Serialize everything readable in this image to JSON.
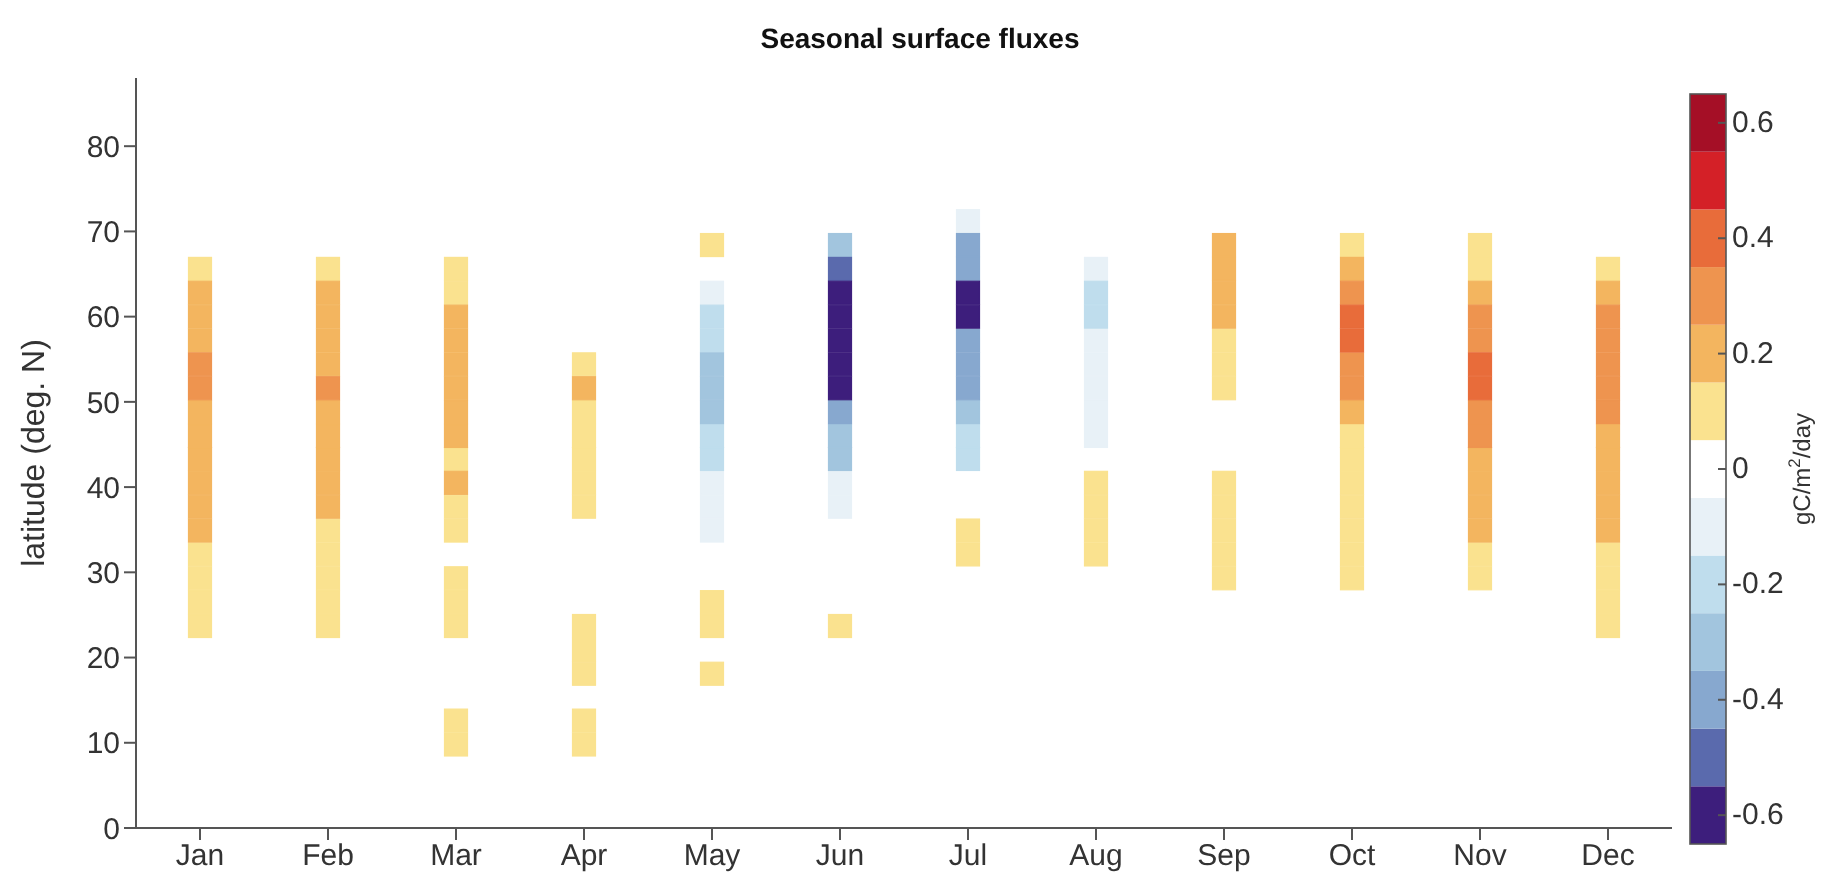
{
  "chart_data": {
    "type": "scatter",
    "title": "Seasonal surface fluxes",
    "ylabel": "latitude (deg. N)",
    "clabel": "gC/m$^{2}$/day",
    "marker": "square",
    "categories": [
      "Jan",
      "Feb",
      "Mar",
      "Apr",
      "May",
      "Jun",
      "Jul",
      "Aug",
      "Sep",
      "Oct",
      "Nov",
      "Dec"
    ],
    "ylim": [
      0,
      88
    ],
    "yticks": [
      0,
      10,
      20,
      30,
      40,
      50,
      60,
      70,
      80
    ],
    "clim": [
      -0.65,
      0.65
    ],
    "cticks": [
      -0.6,
      -0.4,
      -0.2,
      0,
      0.2,
      0.4,
      0.6
    ],
    "series": [
      {
        "color": "#fae28f",
        "x": [
          "Jan",
          "Jan",
          "Jan",
          "Jan",
          "Jan",
          "Feb",
          "Feb",
          "Feb",
          "Feb",
          "Feb",
          "Feb",
          "Mar",
          "Mar",
          "Mar",
          "Mar",
          "Mar",
          "Mar",
          "Mar",
          "Mar",
          "Mar",
          "Mar",
          "Apr",
          "Apr",
          "Apr",
          "Apr",
          "Apr",
          "Apr",
          "Apr",
          "Apr",
          "Apr",
          "Apr",
          "Apr",
          "May",
          "May",
          "May",
          "May",
          "Jun",
          "Jul",
          "Jul",
          "Aug",
          "Aug",
          "Aug",
          "Aug",
          "Sep",
          "Sep",
          "Sep",
          "Sep",
          "Sep",
          "Sep",
          "Sep",
          "Sep",
          "Oct",
          "Oct",
          "Oct",
          "Oct",
          "Oct",
          "Oct",
          "Oct",
          "Oct",
          "Nov",
          "Nov",
          "Nov",
          "Nov",
          "Dec",
          "Dec",
          "Dec",
          "Dec",
          "Dec"
        ],
        "values": [
          23.7,
          26.5,
          29.3,
          32.1,
          65.6,
          23.7,
          26.5,
          29.3,
          32.1,
          34.9,
          65.6,
          9.8,
          12.6,
          23.7,
          26.5,
          29.3,
          34.9,
          37.7,
          43.3,
          62.8,
          65.6,
          9.8,
          12.6,
          18.1,
          20.9,
          23.7,
          37.7,
          40.5,
          43.3,
          46.0,
          48.8,
          54.4,
          18.1,
          23.7,
          26.5,
          68.4,
          23.7,
          32.1,
          34.9,
          32.1,
          34.9,
          37.7,
          40.5,
          29.3,
          32.1,
          34.9,
          37.7,
          40.5,
          51.6,
          54.4,
          57.2,
          29.3,
          32.1,
          34.9,
          37.7,
          40.5,
          43.3,
          46.0,
          68.4,
          29.3,
          32.1,
          65.6,
          68.4,
          23.7,
          26.5,
          29.3,
          32.1,
          65.6
        ],
        "cvalues": [
          0.1,
          0.1,
          0.1,
          0.1,
          0.1,
          0.1,
          0.1,
          0.1,
          0.1,
          0.1,
          0.1,
          0.1,
          0.1,
          0.1,
          0.1,
          0.1,
          0.1,
          0.1,
          0.1,
          0.1,
          0.1,
          0.1,
          0.1,
          0.1,
          0.1,
          0.1,
          0.1,
          0.1,
          0.1,
          0.1,
          0.1,
          0.1,
          0.1,
          0.1,
          0.1,
          0.1,
          0.1,
          0.1,
          0.1,
          0.1,
          0.1,
          0.1,
          0.1,
          0.1,
          0.1,
          0.1,
          0.1,
          0.1,
          0.1,
          0.1,
          0.1,
          0.1,
          0.1,
          0.1,
          0.1,
          0.1,
          0.1,
          0.1,
          0.1,
          0.1,
          0.1,
          0.1,
          0.1,
          0.1,
          0.1,
          0.1,
          0.1,
          0.1
        ]
      },
      {
        "color": "#f3b55f",
        "x": [
          "Jan",
          "Jan",
          "Jan",
          "Jan",
          "Jan",
          "Jan",
          "Jan",
          "Jan",
          "Jan",
          "Feb",
          "Feb",
          "Feb",
          "Feb",
          "Feb",
          "Feb",
          "Feb",
          "Feb",
          "Feb",
          "Mar",
          "Mar",
          "Mar",
          "Mar",
          "Mar",
          "Mar",
          "Mar",
          "Apr",
          "Sep",
          "Sep",
          "Sep",
          "Sep",
          "Oct",
          "Oct",
          "Nov",
          "Nov",
          "Nov",
          "Nov",
          "Nov",
          "Dec",
          "Dec",
          "Dec",
          "Dec",
          "Dec",
          "Dec"
        ],
        "values": [
          34.9,
          37.7,
          40.5,
          43.3,
          46.0,
          48.8,
          57.2,
          60.0,
          62.8,
          37.7,
          40.5,
          43.3,
          46.0,
          48.8,
          54.4,
          57.2,
          60.0,
          62.8,
          40.5,
          46.0,
          48.8,
          51.6,
          54.4,
          57.2,
          60.0,
          51.6,
          60.0,
          62.8,
          65.6,
          68.4,
          48.8,
          65.6,
          34.9,
          37.7,
          40.5,
          43.3,
          62.8,
          34.9,
          37.7,
          40.5,
          43.3,
          46.0,
          62.8
        ],
        "cvalues": [
          0.2,
          0.2,
          0.2,
          0.2,
          0.2,
          0.2,
          0.2,
          0.2,
          0.2,
          0.2,
          0.2,
          0.2,
          0.2,
          0.2,
          0.2,
          0.2,
          0.2,
          0.2,
          0.2,
          0.2,
          0.2,
          0.2,
          0.2,
          0.2,
          0.2,
          0.2,
          0.2,
          0.2,
          0.2,
          0.2,
          0.2,
          0.2,
          0.2,
          0.2,
          0.2,
          0.2,
          0.2,
          0.2,
          0.2,
          0.2,
          0.2,
          0.2,
          0.2
        ]
      },
      {
        "color": "#ee944f",
        "x": [
          "Jan",
          "Jan",
          "Feb",
          "Oct",
          "Oct",
          "Oct",
          "Nov",
          "Nov",
          "Nov",
          "Nov",
          "Dec",
          "Dec",
          "Dec",
          "Dec",
          "Dec"
        ],
        "values": [
          51.6,
          54.4,
          51.6,
          51.6,
          54.4,
          62.8,
          46.0,
          48.8,
          57.2,
          60.0,
          48.8,
          51.6,
          54.4,
          57.2,
          60.0
        ],
        "cvalues": [
          0.3,
          0.3,
          0.3,
          0.3,
          0.3,
          0.3,
          0.3,
          0.3,
          0.3,
          0.3,
          0.3,
          0.3,
          0.3,
          0.3,
          0.3
        ]
      },
      {
        "color": "#e86c3a",
        "x": [
          "Oct",
          "Oct",
          "Nov",
          "Nov"
        ],
        "values": [
          57.2,
          60.0,
          51.6,
          54.4
        ],
        "cvalues": [
          0.4,
          0.4,
          0.4,
          0.4
        ]
      },
      {
        "color": "#e8f1f7",
        "x": [
          "May",
          "May",
          "May",
          "May",
          "Jun",
          "Jun",
          "Jul",
          "Aug",
          "Aug",
          "Aug",
          "Aug",
          "Aug",
          "Aug"
        ],
        "values": [
          34.9,
          37.7,
          40.5,
          62.8,
          37.7,
          40.5,
          71.2,
          46.0,
          48.8,
          51.6,
          54.4,
          57.2,
          65.6
        ],
        "cvalues": [
          -0.1,
          -0.1,
          -0.1,
          -0.1,
          -0.1,
          -0.1,
          -0.1,
          -0.1,
          -0.1,
          -0.1,
          -0.1,
          -0.1,
          -0.1
        ]
      },
      {
        "color": "#bfdded",
        "x": [
          "May",
          "May",
          "May",
          "May",
          "Jul",
          "Jul",
          "Aug",
          "Aug"
        ],
        "values": [
          43.3,
          46.0,
          57.2,
          60.0,
          43.3,
          46.0,
          60.0,
          62.8
        ],
        "cvalues": [
          -0.2,
          -0.2,
          -0.2,
          -0.2,
          -0.2,
          -0.2,
          -0.2,
          -0.2
        ]
      },
      {
        "color": "#a2c5de",
        "x": [
          "May",
          "May",
          "May",
          "Jun",
          "Jun",
          "Jun",
          "Jul"
        ],
        "values": [
          48.8,
          51.6,
          54.4,
          43.3,
          46.0,
          68.4,
          48.8
        ],
        "cvalues": [
          -0.3,
          -0.3,
          -0.3,
          -0.3,
          -0.3,
          -0.3,
          -0.3
        ]
      },
      {
        "color": "#87a8cf",
        "x": [
          "Jun",
          "Jul",
          "Jul",
          "Jul",
          "Jul",
          "Jul"
        ],
        "values": [
          48.8,
          51.6,
          54.4,
          57.2,
          65.6,
          68.4
        ],
        "cvalues": [
          -0.4,
          -0.4,
          -0.4,
          -0.4,
          -0.4,
          -0.4
        ]
      },
      {
        "color": "#5a6aad",
        "x": [
          "Jun"
        ],
        "values": [
          65.6
        ],
        "cvalues": [
          -0.5
        ]
      },
      {
        "color": "#3d1e7c",
        "x": [
          "Jun",
          "Jun",
          "Jun",
          "Jun",
          "Jun",
          "Jul",
          "Jul"
        ],
        "values": [
          51.6,
          54.4,
          57.2,
          60.0,
          62.8,
          60.0,
          62.8
        ],
        "cvalues": [
          -0.6,
          -0.6,
          -0.6,
          -0.6,
          -0.6,
          -0.6,
          -0.6
        ]
      }
    ]
  }
}
